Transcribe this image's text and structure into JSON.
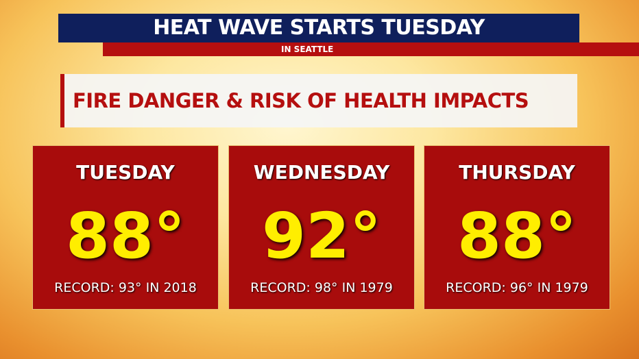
{
  "header": {
    "title": "HEAT WAVE STARTS TUESDAY",
    "subtitle": "IN SEATTLE"
  },
  "banner": "FIRE DANGER & RISK OF HEALTH IMPACTS",
  "days": [
    {
      "day": "TUESDAY",
      "temp": "88°",
      "record": "RECORD: 93° IN 2018"
    },
    {
      "day": "WEDNESDAY",
      "temp": "92°",
      "record": "RECORD: 98° IN 1979"
    },
    {
      "day": "THURSDAY",
      "temp": "88°",
      "record": "RECORD: 96° IN 1979"
    }
  ]
}
